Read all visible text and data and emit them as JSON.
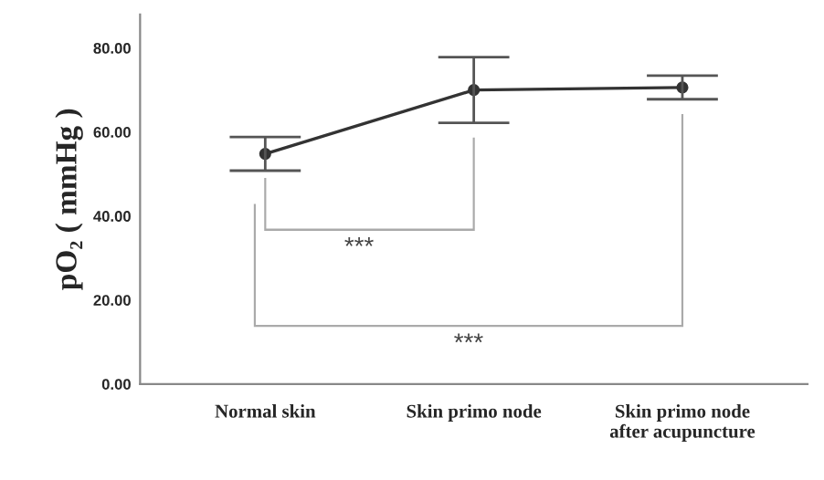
{
  "chart_data": {
    "type": "line",
    "ylabel": "pO₂ ( mmHg )",
    "categories": [
      "Normal skin",
      "Skin primo node",
      "Skin primo node\nafter acupuncture"
    ],
    "values": [
      54.8,
      70.0,
      70.6
    ],
    "errors": [
      4.0,
      7.8,
      2.8
    ],
    "color": "#333333",
    "marker": "circle",
    "ylim": [
      0,
      88
    ],
    "yticks": [
      {
        "value": 0,
        "label": "0.00"
      },
      {
        "value": 20,
        "label": "20.00"
      },
      {
        "value": 40,
        "label": "40.00"
      },
      {
        "value": 60,
        "label": "60.00"
      },
      {
        "value": 80,
        "label": "80.00"
      }
    ],
    "annotations": [
      "***",
      "***"
    ],
    "grid": false
  }
}
